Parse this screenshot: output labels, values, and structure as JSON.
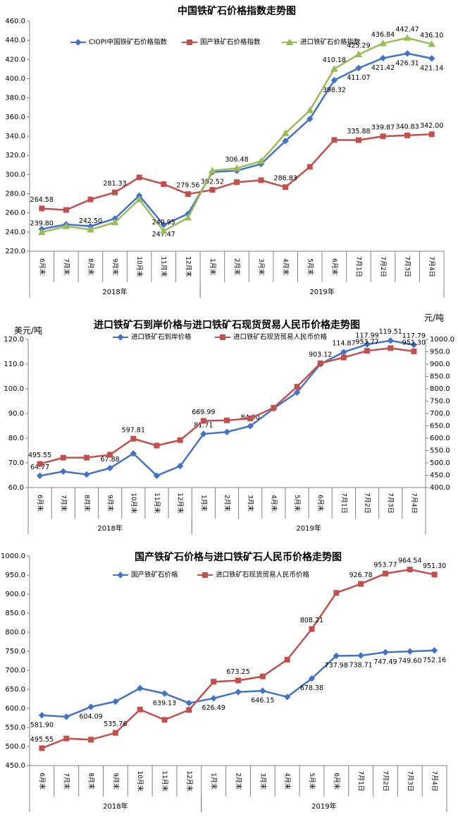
{
  "chart_data": [
    {
      "type": "line",
      "title": "中国铁矿石价格指数走势图",
      "categories": [
        "6月末",
        "7月末",
        "8月末",
        "9月末",
        "10月末",
        "11月末",
        "12月末",
        "1月末",
        "2月末",
        "3月末",
        "4月末",
        "5月末",
        "6月末",
        "7月1日",
        "7月2日",
        "7月3日",
        "7月4日"
      ],
      "groups": [
        {
          "label": "2018年",
          "size": 7
        },
        {
          "label": "2019年",
          "size": 10
        }
      ],
      "ylim": [
        220,
        460
      ],
      "yticks": [
        {
          "value": 220,
          "label": "220.0"
        },
        {
          "value": 240,
          "label": "240.0"
        },
        {
          "value": 260,
          "label": "260.0"
        },
        {
          "value": 280,
          "label": "280.0"
        },
        {
          "value": 300,
          "label": "300.0"
        },
        {
          "value": 320,
          "label": "320.0"
        },
        {
          "value": 340,
          "label": "340.0"
        },
        {
          "value": 360,
          "label": "360.0"
        },
        {
          "value": 380,
          "label": "380.0"
        },
        {
          "value": 400,
          "label": "400.0"
        },
        {
          "value": 420,
          "label": "420.0"
        },
        {
          "value": 440,
          "label": "440.0"
        },
        {
          "value": 460,
          "label": "460.0"
        }
      ],
      "series": [
        {
          "name": "CIOPI中国铁矿石价格指数",
          "color": "#4472c4",
          "marker": "diamond",
          "values": [
            243,
            248,
            246,
            254,
            278,
            247.47,
            259,
            302.52,
            304,
            311,
            335,
            358,
            398.32,
            411.07,
            421.42,
            426.31,
            421.14
          ],
          "value_labels": [
            null,
            null,
            null,
            null,
            null,
            "247.47",
            null,
            "302.52",
            null,
            null,
            null,
            null,
            "398.32",
            "411.07",
            "421.42",
            "426.31",
            "421.14"
          ]
        },
        {
          "name": "国产铁矿石价格指数",
          "color": "#c0504d",
          "marker": "square",
          "values": [
            264.58,
            263,
            274,
            281.33,
            297,
            290,
            279.56,
            284,
            292,
            294,
            286.83,
            308,
            336,
            335.88,
            339.87,
            340.83,
            342
          ],
          "value_labels": [
            "264.58",
            null,
            null,
            "281.33",
            null,
            null,
            "279.56",
            null,
            null,
            null,
            "286.83",
            null,
            null,
            "335.88",
            "339.87",
            "340.83",
            "342.00"
          ]
        },
        {
          "name": "进口铁矿石价格指数",
          "color": "#9bbb59",
          "marker": "triangle",
          "values": [
            239.8,
            246,
            242.5,
            250,
            274,
            240.95,
            255,
            304,
            306.48,
            314,
            343,
            367,
            410.18,
            425.29,
            436.84,
            442.47,
            436.1
          ],
          "value_labels": [
            "239.80",
            null,
            "242.50",
            null,
            null,
            "240.95",
            null,
            null,
            "306.48",
            null,
            null,
            null,
            "410.18",
            "425.29",
            "436.84",
            "442.47",
            "436.10"
          ]
        }
      ]
    },
    {
      "type": "line",
      "title": "进口铁矿石到岸价格与进口铁矿石现货贸易人民币价格走势图",
      "ylabel": "美元/吨",
      "y2label": "元/吨",
      "categories": [
        "6月末",
        "7月末",
        "8月末",
        "9月末",
        "10月末",
        "11月末",
        "12月末",
        "1月末",
        "2月末",
        "3月末",
        "4月末",
        "5月末",
        "6月末",
        "7月1日",
        "7月2日",
        "7月3日",
        "7月4日"
      ],
      "groups": [
        {
          "label": "2018年",
          "size": 7
        },
        {
          "label": "2019年",
          "size": 10
        }
      ],
      "ylim": [
        60,
        120
      ],
      "yticks": [
        {
          "value": 60,
          "label": "60.0"
        },
        {
          "value": 70,
          "label": "70.0"
        },
        {
          "value": 80,
          "label": "80.0"
        },
        {
          "value": 90,
          "label": "90.0"
        },
        {
          "value": 100,
          "label": "100.0"
        },
        {
          "value": 110,
          "label": "110.0"
        },
        {
          "value": 120,
          "label": "120.0"
        }
      ],
      "y2lim": [
        400,
        1000
      ],
      "y2ticks": [
        {
          "value": 400,
          "label": "400.0"
        },
        {
          "value": 450,
          "label": "450.0"
        },
        {
          "value": 500,
          "label": "500.0"
        },
        {
          "value": 550,
          "label": "550.0"
        },
        {
          "value": 600,
          "label": "600.0"
        },
        {
          "value": 650,
          "label": "650.0"
        },
        {
          "value": 700,
          "label": "700.0"
        },
        {
          "value": 750,
          "label": "750.0"
        },
        {
          "value": 800,
          "label": "800.0"
        },
        {
          "value": 850,
          "label": "850.0"
        },
        {
          "value": 900,
          "label": "900.0"
        },
        {
          "value": 950,
          "label": "950.0"
        },
        {
          "value": 1000,
          "label": "1000.0"
        }
      ],
      "series": [
        {
          "name": "进口铁矿石到岸价格",
          "color": "#4472c4",
          "marker": "diamond",
          "values": [
            64.77,
            66.5,
            65.3,
            67.88,
            73.8,
            64.8,
            68.7,
            81.71,
            82.5,
            84.9,
            92,
            98.5,
            110,
            114.87,
            117.99,
            119.51,
            117.79
          ],
          "value_labels": [
            "64.77",
            null,
            null,
            "67.88",
            null,
            null,
            null,
            "81.71",
            null,
            "84.90",
            null,
            null,
            null,
            "114.87",
            "117.99",
            "119.51",
            "117.79"
          ]
        },
        {
          "name": "进口铁矿石现货贸易人民币价格",
          "color": "#c0504d",
          "marker": "square",
          "axis": "y2",
          "values": [
            495.55,
            521,
            521,
            533,
            597.81,
            570,
            592,
            669.99,
            672,
            680,
            723,
            808.21,
            903.12,
            926.78,
            953.77,
            964.54,
            951.3
          ],
          "value_labels": [
            "495.55",
            null,
            null,
            null,
            "597.81",
            null,
            null,
            "669.99",
            null,
            null,
            null,
            null,
            "903.12",
            null,
            "953.77",
            null,
            "951.30"
          ]
        }
      ]
    },
    {
      "type": "line",
      "title": "国产铁矿石价格与进口铁矿石人民币价格走势图",
      "categories": [
        "6月末",
        "7月末",
        "8月末",
        "9月末",
        "10月末",
        "11月末",
        "12月末",
        "1月末",
        "2月末",
        "3月末",
        "4月末",
        "5月末",
        "6月末",
        "7月1日",
        "7月2日",
        "7月3日",
        "7月4日"
      ],
      "groups": [
        {
          "label": "2018年",
          "size": 7
        },
        {
          "label": "2019年",
          "size": 10
        }
      ],
      "ylim": [
        450,
        1000
      ],
      "yticks": [
        {
          "value": 450,
          "label": "450.0"
        },
        {
          "value": 500,
          "label": "500.0"
        },
        {
          "value": 550,
          "label": "550.0"
        },
        {
          "value": 600,
          "label": "600.0"
        },
        {
          "value": 650,
          "label": "650.0"
        },
        {
          "value": 700,
          "label": "700.0"
        },
        {
          "value": 750,
          "label": "750.0"
        },
        {
          "value": 800,
          "label": "800.0"
        },
        {
          "value": 850,
          "label": "850.0"
        },
        {
          "value": 900,
          "label": "900.0"
        },
        {
          "value": 950,
          "label": "950.0"
        },
        {
          "value": 1000,
          "label": "1000.0"
        }
      ],
      "series": [
        {
          "name": "国产铁矿石价格",
          "color": "#4472c4",
          "marker": "diamond",
          "values": [
            581.9,
            578,
            604.09,
            618,
            653,
            639.13,
            614,
            626.49,
            643,
            646.15,
            630,
            678.38,
            737.98,
            738.71,
            747.49,
            749.6,
            752.16
          ],
          "value_labels": [
            "581.90",
            null,
            "604.09",
            null,
            null,
            "639.13",
            null,
            "626.49",
            null,
            "646.15",
            null,
            "678.38",
            "737.98",
            "738.71",
            "747.49",
            "749.60",
            "752.16"
          ]
        },
        {
          "name": "进口铁矿石现货贸易人民币价格",
          "color": "#c0504d",
          "marker": "square",
          "values": [
            495.55,
            521,
            518,
            535.76,
            597,
            570,
            596,
            670,
            673.25,
            684,
            728,
            808.21,
            903.12,
            926.78,
            953.77,
            964.54,
            951.3
          ],
          "value_labels": [
            "495.55",
            null,
            null,
            "535.76",
            null,
            null,
            null,
            null,
            "673.25",
            null,
            null,
            "808.21",
            null,
            "926.78",
            "953.77",
            "964.54",
            "951.30"
          ]
        }
      ]
    }
  ]
}
